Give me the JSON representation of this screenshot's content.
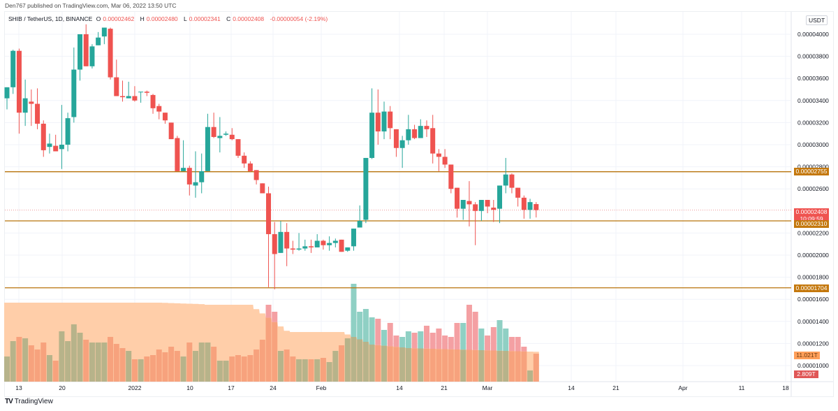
{
  "header": {
    "published_line": "Den767 published on TradingView.com, Mar 06, 2022 13:50 UTC",
    "symbol_line": "SHIB / TetherUS, 1D, BINANCE",
    "ohlc": {
      "o_label": "O",
      "o_value": "0.00002462",
      "h_label": "H",
      "h_value": "0.00002480",
      "l_label": "L",
      "l_value": "0.00002341",
      "c_label": "C",
      "c_value": "0.00002408",
      "change": "-0.00000054 (-2.19%)"
    }
  },
  "price_axis": {
    "currency_button": "USDT",
    "labels": [
      "0.00004000",
      "0.00003800",
      "0.00003600",
      "0.00003400",
      "0.00003200",
      "0.00003000",
      "0.00002800",
      "0.00002600",
      "0.00002200",
      "0.00002000",
      "0.00001800",
      "0.00001600",
      "0.00001400",
      "0.00001200",
      "0.00001000"
    ],
    "badges": {
      "resistance": "0.00002755",
      "last_price": "0.00002408",
      "countdown": "10:09:59",
      "support": "0.00002310",
      "low_line": "0.00001704",
      "volume_ma": "11.021T",
      "volume": "2.809T"
    }
  },
  "time_axis": {
    "labels": [
      "13",
      "20",
      "2022",
      "10",
      "17",
      "24",
      "Feb",
      "14",
      "21",
      "Mar",
      "14",
      "21",
      "Apr",
      "11",
      "18"
    ]
  },
  "footer": {
    "brand": "TradingView",
    "logo": "TV"
  },
  "colors": {
    "up": "#26a69a",
    "down": "#ef5350",
    "level_line": "#b8730a",
    "volume_ma_fill": "#ffcba4",
    "volume_up": "#b7b38a",
    "volume_down": "#f7a27d",
    "badge_orange": "#c4780d",
    "badge_last": "#ef5350",
    "badge_vol_ma": "#ff9f5a",
    "badge_vol": "#e05656"
  },
  "chart_data": {
    "type": "candlestick",
    "title": "SHIB / TetherUS, 1D, BINANCE",
    "price_unit": "1e-8 USDT",
    "x_start": "2021-12-11",
    "x_end": "2022-03-06",
    "ylim": [
      1000,
      4100
    ],
    "horizontal_levels": [
      2755,
      2310,
      1704
    ],
    "candles": [
      [
        3420,
        3520,
        3320,
        3520
      ],
      [
        3520,
        3860,
        3460,
        3850
      ],
      [
        3850,
        3870,
        3100,
        3290
      ],
      [
        3290,
        3590,
        3170,
        3420
      ],
      [
        3390,
        3500,
        3170,
        3370
      ],
      [
        3370,
        3510,
        3140,
        3190
      ],
      [
        3190,
        3220,
        2890,
        2950
      ],
      [
        2980,
        3100,
        2920,
        3010
      ],
      [
        2990,
        3090,
        2970,
        2940
      ],
      [
        2960,
        3360,
        2780,
        3000
      ],
      [
        3000,
        3290,
        2940,
        3240
      ],
      [
        3250,
        3880,
        3200,
        3680
      ],
      [
        3680,
        4000,
        3580,
        4000
      ],
      [
        4000,
        4090,
        3760,
        3710
      ],
      [
        3710,
        3910,
        3690,
        3890
      ],
      [
        3900,
        4020,
        3910,
        3970
      ],
      [
        3980,
        4050,
        3910,
        4060
      ],
      [
        4050,
        4060,
        3590,
        3610
      ],
      [
        3610,
        3770,
        3520,
        3440
      ],
      [
        3440,
        3580,
        3390,
        3430
      ],
      [
        3420,
        3570,
        3420,
        3440
      ],
      [
        3440,
        3530,
        3390,
        3400
      ],
      [
        3480,
        3480,
        3380,
        3480
      ],
      [
        3480,
        3490,
        3440,
        3470
      ],
      [
        3450,
        3460,
        3280,
        3330
      ],
      [
        3350,
        3370,
        3230,
        3300
      ],
      [
        3290,
        3260,
        3190,
        3220
      ],
      [
        3200,
        3190,
        3080,
        3050
      ],
      [
        3060,
        3080,
        2780,
        2760
      ],
      [
        2760,
        3040,
        2810,
        2790
      ],
      [
        2790,
        2810,
        2540,
        2640
      ],
      [
        2630,
        2940,
        2520,
        2660
      ],
      [
        2660,
        2920,
        2560,
        2760
      ],
      [
        2760,
        3280,
        2780,
        3160
      ],
      [
        3160,
        3290,
        3060,
        3070
      ],
      [
        3060,
        3250,
        2930,
        3080
      ],
      [
        3090,
        3120,
        3080,
        3100
      ],
      [
        3090,
        3150,
        3040,
        3050
      ],
      [
        3050,
        3020,
        2880,
        2900
      ],
      [
        2900,
        2930,
        2790,
        2830
      ],
      [
        2830,
        2850,
        2750,
        2760
      ],
      [
        2770,
        2770,
        2640,
        2680
      ],
      [
        2650,
        2640,
        2590,
        2560
      ],
      [
        2560,
        2620,
        1710,
        2190
      ],
      [
        2190,
        2300,
        1690,
        2010
      ],
      [
        2020,
        2310,
        2030,
        2210
      ],
      [
        2210,
        2290,
        1900,
        2060
      ],
      [
        2060,
        2130,
        2010,
        2050
      ],
      [
        2050,
        2200,
        2040,
        2060
      ],
      [
        2060,
        2140,
        2040,
        2080
      ],
      [
        2080,
        2140,
        2020,
        2070
      ],
      [
        2070,
        2190,
        2100,
        2130
      ],
      [
        2130,
        2140,
        2050,
        2090
      ],
      [
        2090,
        2170,
        2040,
        2110
      ],
      [
        2110,
        2150,
        2070,
        2130
      ],
      [
        2140,
        2130,
        2050,
        2030
      ],
      [
        2040,
        2060,
        2030,
        2070
      ],
      [
        2080,
        2240,
        2040,
        2240
      ],
      [
        2250,
        2450,
        2270,
        2310
      ],
      [
        2320,
        2880,
        2290,
        2880
      ],
      [
        2880,
        3510,
        2870,
        3290
      ],
      [
        3290,
        3500,
        3000,
        3120
      ],
      [
        3120,
        3390,
        3050,
        3300
      ],
      [
        3300,
        3350,
        3050,
        3150
      ],
      [
        3140,
        3120,
        2890,
        2970
      ],
      [
        2970,
        3080,
        2790,
        3040
      ],
      [
        3040,
        3270,
        3000,
        3140
      ],
      [
        3140,
        3180,
        3050,
        3060
      ],
      [
        3060,
        3230,
        3060,
        3170
      ],
      [
        3170,
        3220,
        3070,
        3140
      ],
      [
        3150,
        3270,
        2830,
        2920
      ],
      [
        2920,
        2960,
        2760,
        2890
      ],
      [
        2890,
        2960,
        2790,
        2820
      ],
      [
        2820,
        2780,
        2560,
        2600
      ],
      [
        2610,
        2600,
        2340,
        2420
      ],
      [
        2420,
        2500,
        2320,
        2500
      ],
      [
        2490,
        2670,
        2260,
        2460
      ],
      [
        2460,
        2480,
        2090,
        2400
      ],
      [
        2400,
        2490,
        2310,
        2500
      ],
      [
        2500,
        2490,
        2380,
        2440
      ],
      [
        2430,
        2500,
        2300,
        2410
      ],
      [
        2420,
        2520,
        2290,
        2630
      ],
      [
        2630,
        2880,
        2560,
        2730
      ],
      [
        2730,
        2740,
        2560,
        2610
      ],
      [
        2610,
        2600,
        2440,
        2520
      ],
      [
        2520,
        2540,
        2330,
        2410
      ],
      [
        2410,
        2510,
        2330,
        2480
      ],
      [
        2462,
        2480,
        2341,
        2408
      ]
    ],
    "candles_format": "[open, high, low, close] in 1e-8 USDT",
    "volume_ma_approx": "declining from ~16.5T to ~11.0T",
    "last_volume": "2.809T",
    "last_volume_ma": "11.021T"
  }
}
